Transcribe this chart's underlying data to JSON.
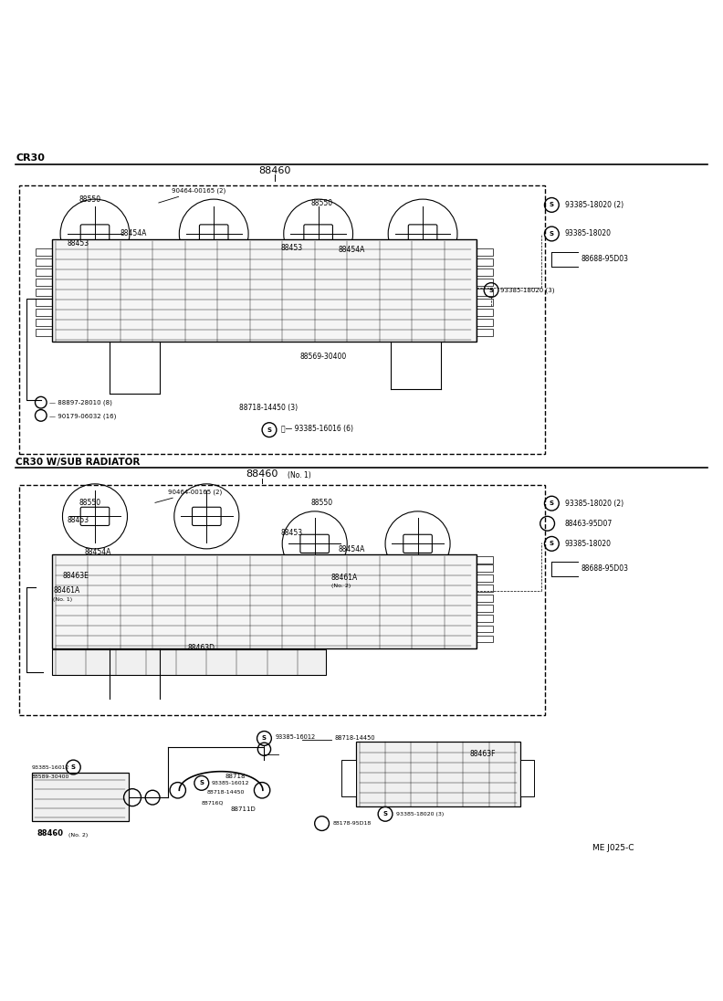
{
  "title": "CR30",
  "subtitle": "CR30 W/SUB RADIATOR",
  "doc_ref": "ME J025-C",
  "bg_color": "#ffffff",
  "line_color": "#000000",
  "fig_width": 7.92,
  "fig_height": 10.96
}
